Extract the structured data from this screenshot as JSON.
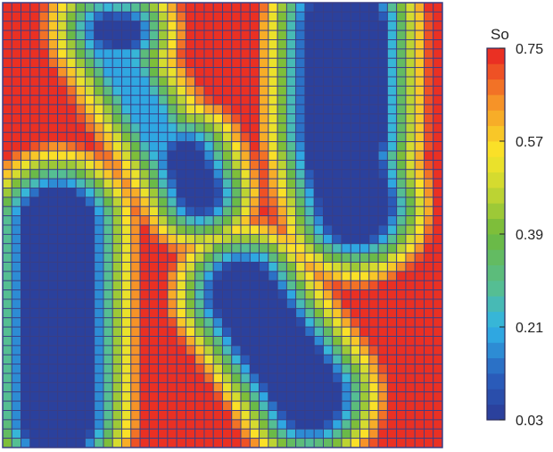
{
  "chart_data": {
    "type": "heatmap",
    "title": "",
    "xlabel": "",
    "ylabel": "",
    "grid": true,
    "nx": 48,
    "ny": 48,
    "colorbar": {
      "title": "So",
      "min": 0.03,
      "max": 0.75,
      "ticks": [
        "0.75",
        "0.57",
        "0.39",
        "0.21",
        "0.03"
      ],
      "tick_values": [
        0.75,
        0.57,
        0.39,
        0.21,
        0.03
      ],
      "levels": 24,
      "placement": "right"
    },
    "field_description": "Oil saturation map: low-saturation (blue) sweep regions in a high-saturation (red) background",
    "regions": [
      {
        "shape": "stadium",
        "p1": [
          6,
          24
        ],
        "p2": [
          6,
          44.5
        ],
        "radius": 3.9,
        "value": 0.05
      },
      {
        "shape": "stadium",
        "p1": [
          37.2,
          2.8
        ],
        "p2": [
          37.2,
          14.2
        ],
        "radius": 4.3,
        "value": 0.05
      },
      {
        "shape": "stadium",
        "p1": [
          37.2,
          17
        ],
        "p2": [
          38.5,
          22
        ],
        "radius": 3.7,
        "value": 0.05
      },
      {
        "shape": "stadium",
        "p1": [
          26.3,
          31.5
        ],
        "p2": [
          33.5,
          42.5
        ],
        "radius": 3.4,
        "value": 0.05
      },
      {
        "shape": "stadium",
        "p1": [
          10.5,
          2.8
        ],
        "p2": [
          19.5,
          18.5
        ],
        "radius": 1.4,
        "value": 0.18
      },
      {
        "shape": "stadium",
        "p1": [
          20,
          17
        ],
        "p2": [
          21.5,
          20.5
        ],
        "radius": 1.9,
        "value": 0.05
      },
      {
        "shape": "stadium",
        "p1": [
          11.5,
          3
        ],
        "p2": [
          13.5,
          3.2
        ],
        "radius": 1.4,
        "value": 0.05
      }
    ]
  }
}
